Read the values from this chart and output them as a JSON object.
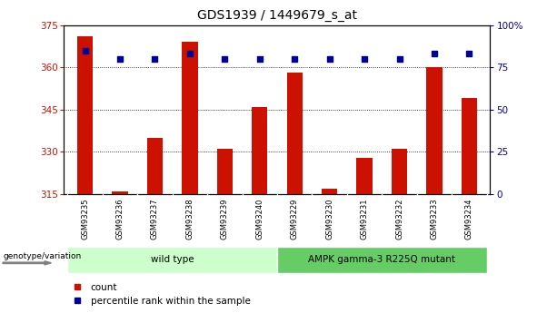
{
  "title": "GDS1939 / 1449679_s_at",
  "samples": [
    "GSM93235",
    "GSM93236",
    "GSM93237",
    "GSM93238",
    "GSM93239",
    "GSM93240",
    "GSM93229",
    "GSM93230",
    "GSM93231",
    "GSM93232",
    "GSM93233",
    "GSM93234"
  ],
  "counts": [
    371,
    316,
    335,
    369,
    331,
    346,
    358,
    317,
    328,
    331,
    360,
    349
  ],
  "percentiles": [
    85,
    80,
    80,
    83,
    80,
    80,
    80,
    80,
    80,
    80,
    83,
    83
  ],
  "ylim_left": [
    315,
    375
  ],
  "ylim_right": [
    0,
    100
  ],
  "yticks_left": [
    315,
    330,
    345,
    360,
    375
  ],
  "yticks_right": [
    0,
    25,
    50,
    75,
    100
  ],
  "bar_color": "#CC1100",
  "percentile_color": "#000099",
  "grid_color": "#000000",
  "groups": [
    {
      "label": "wild type",
      "indices": [
        0,
        1,
        2,
        3,
        4,
        5
      ],
      "color": "#CCFFCC"
    },
    {
      "label": "AMPK gamma-3 R225Q mutant",
      "indices": [
        6,
        7,
        8,
        9,
        10,
        11
      ],
      "color": "#66CC66"
    }
  ],
  "legend_items": [
    {
      "label": "count",
      "color": "#CC1100"
    },
    {
      "label": "percentile rank within the sample",
      "color": "#000099"
    }
  ],
  "bar_width": 0.45,
  "genotype_label": "genotype/variation",
  "title_fontsize": 10,
  "tick_fontsize": 7.5,
  "group_label_fontsize": 7.5,
  "legend_fontsize": 7.5,
  "background_color": "#FFFFFF",
  "plot_bg_color": "#FFFFFF",
  "xticklabel_bg": "#C8C8C8"
}
